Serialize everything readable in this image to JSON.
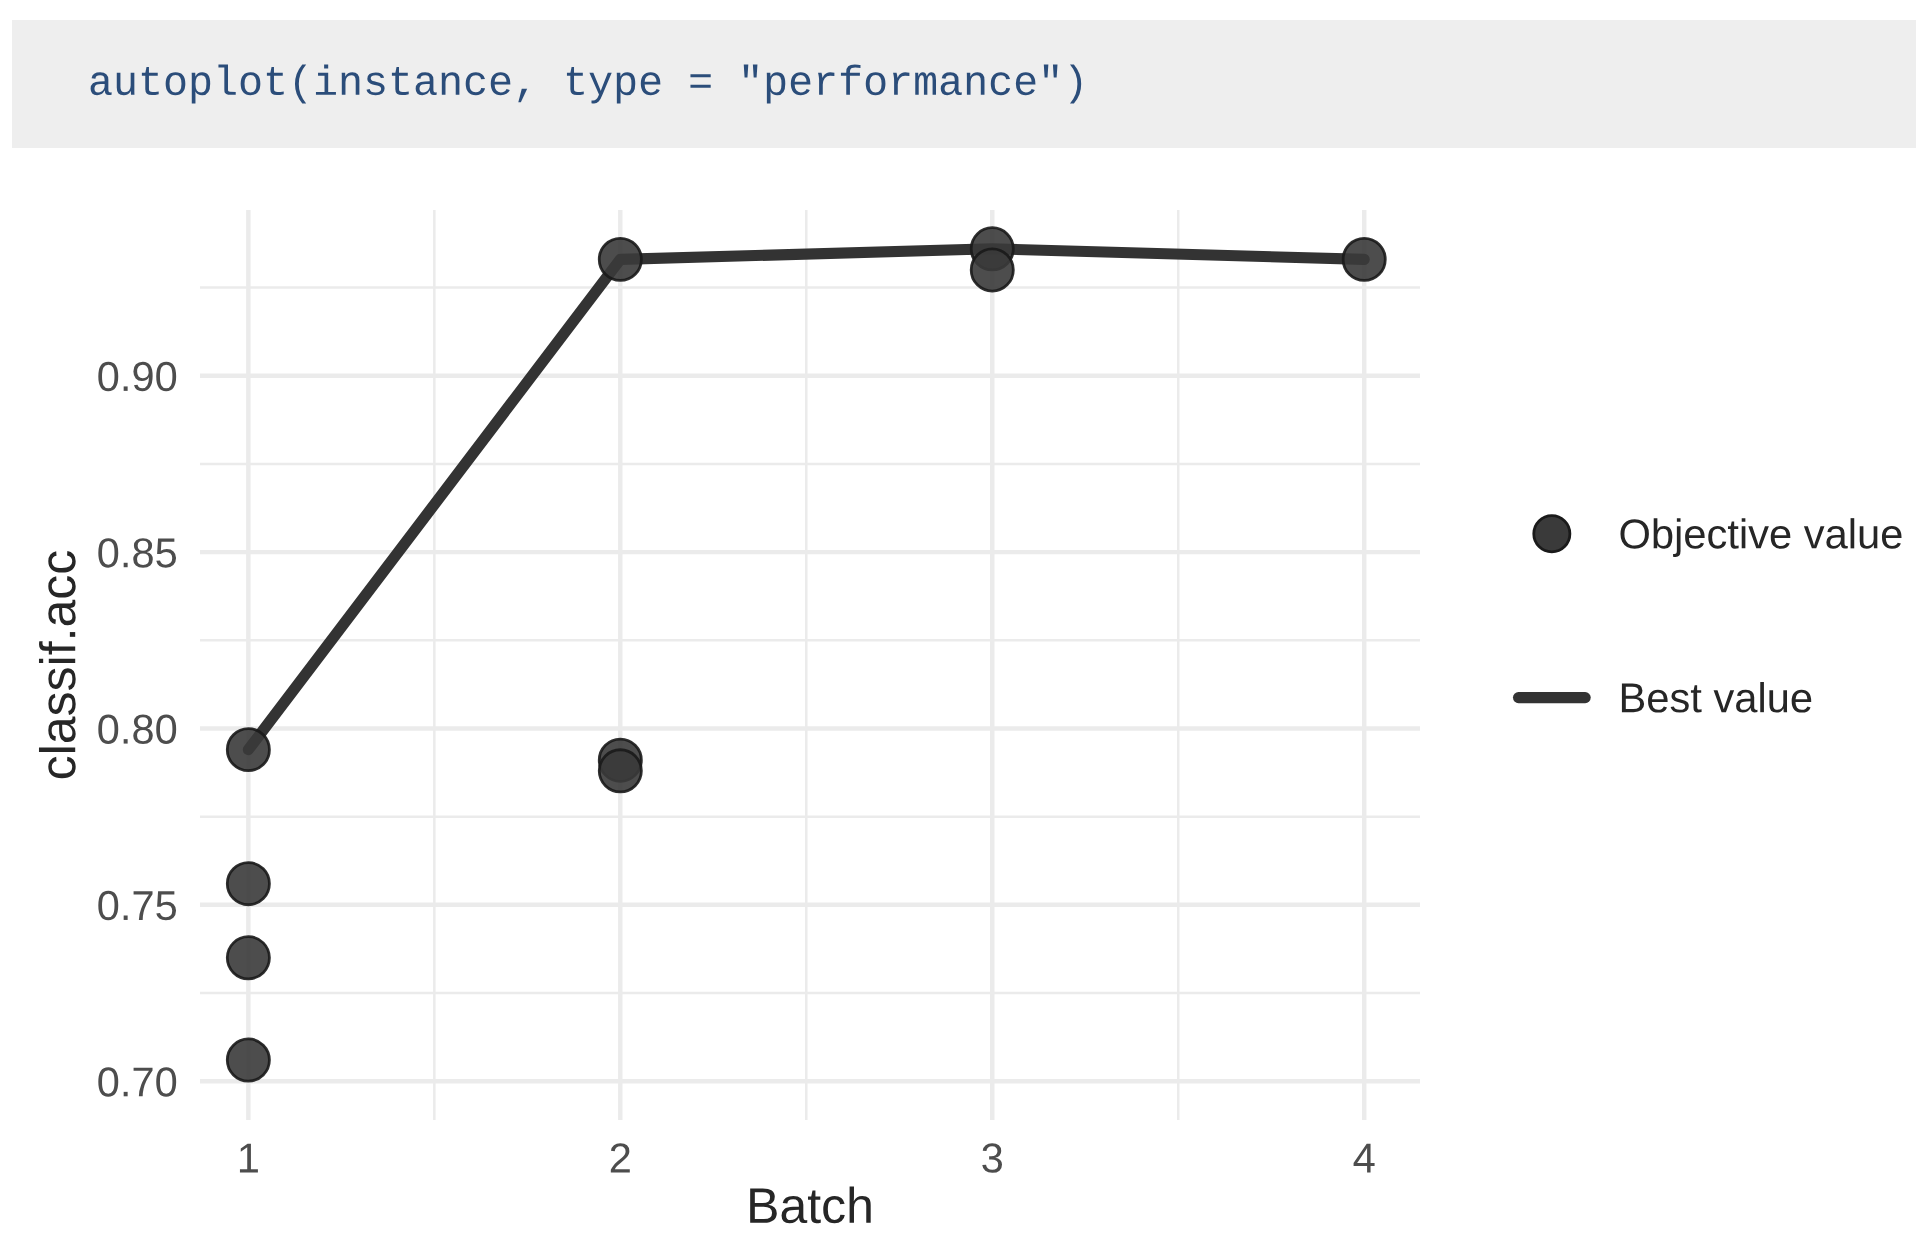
{
  "chart_data": {
    "type": "scatter",
    "xlabel": "Batch",
    "ylabel": "classif.acc",
    "annotations": [
      "autoplot(instance, type = \"performance\")"
    ],
    "series": [
      {
        "name": "Objective value",
        "color": "#3a3a3a",
        "marker": "circle",
        "x": [
          1,
          1,
          1,
          1,
          2,
          2,
          2,
          3,
          3,
          4
        ],
        "values": [
          0.794,
          0.756,
          0.735,
          0.706,
          0.933,
          0.791,
          0.788,
          0.936,
          0.93,
          0.933
        ]
      },
      {
        "name": "Best value",
        "type": "line",
        "color": "#333333",
        "line_style": "solid",
        "x": [
          1,
          2,
          3,
          4
        ],
        "values": [
          0.794,
          0.933,
          0.936,
          0.933
        ]
      }
    ],
    "xlim": [
      0.87,
      4.15
    ],
    "xticks": [
      1,
      2,
      3,
      4
    ],
    "ylim": [
      0.689,
      0.947
    ],
    "yticks": [
      {
        "value": 0.7,
        "label": "0.70"
      },
      0.75,
      {
        "value": 0.8,
        "label": "0.80"
      },
      0.85,
      {
        "value": 0.9,
        "label": "0.90"
      }
    ],
    "grid": true,
    "legend": "right"
  }
}
